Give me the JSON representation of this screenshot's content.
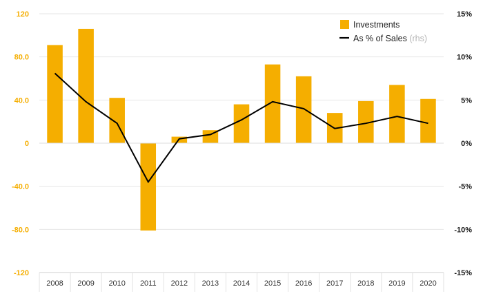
{
  "chart_data": {
    "type": "bar",
    "categories": [
      "2008",
      "2009",
      "2010",
      "2011",
      "2012",
      "2013",
      "2014",
      "2015",
      "2016",
      "2017",
      "2018",
      "2019",
      "2020"
    ],
    "series": [
      {
        "name": "Investments",
        "kind": "bar",
        "axis": "left",
        "values": [
          91,
          106,
          42,
          -81,
          6,
          12,
          36,
          73,
          62,
          28,
          39,
          54,
          41
        ]
      },
      {
        "name": "As % of Sales",
        "name_suffix": "(rhs)",
        "kind": "line",
        "axis": "right",
        "values": [
          8.1,
          4.8,
          2.3,
          -4.5,
          0.5,
          1.0,
          2.7,
          4.8,
          4.0,
          1.7,
          2.3,
          3.1,
          2.3
        ]
      }
    ],
    "yaxis_left": {
      "ticks": [
        120,
        80,
        40,
        0,
        -40,
        -80,
        -120
      ],
      "tick_labels": [
        "120",
        "80.0",
        "40.0",
        "0",
        "-40.0",
        "-80.0",
        "-120"
      ],
      "range": [
        -120,
        120
      ]
    },
    "yaxis_right": {
      "ticks": [
        15,
        10,
        5,
        0,
        -5,
        -10,
        -15
      ],
      "tick_labels": [
        "15%",
        "10%",
        "5%",
        "0%",
        "-5%",
        "-10%",
        "-15%"
      ],
      "range": [
        -15,
        15
      ]
    },
    "grid": true,
    "legend": "top-right",
    "colors": {
      "bar": "#f5ae00",
      "line": "#000000",
      "left_tick": "#f5ae00",
      "grid": "#e6e6e6"
    }
  }
}
